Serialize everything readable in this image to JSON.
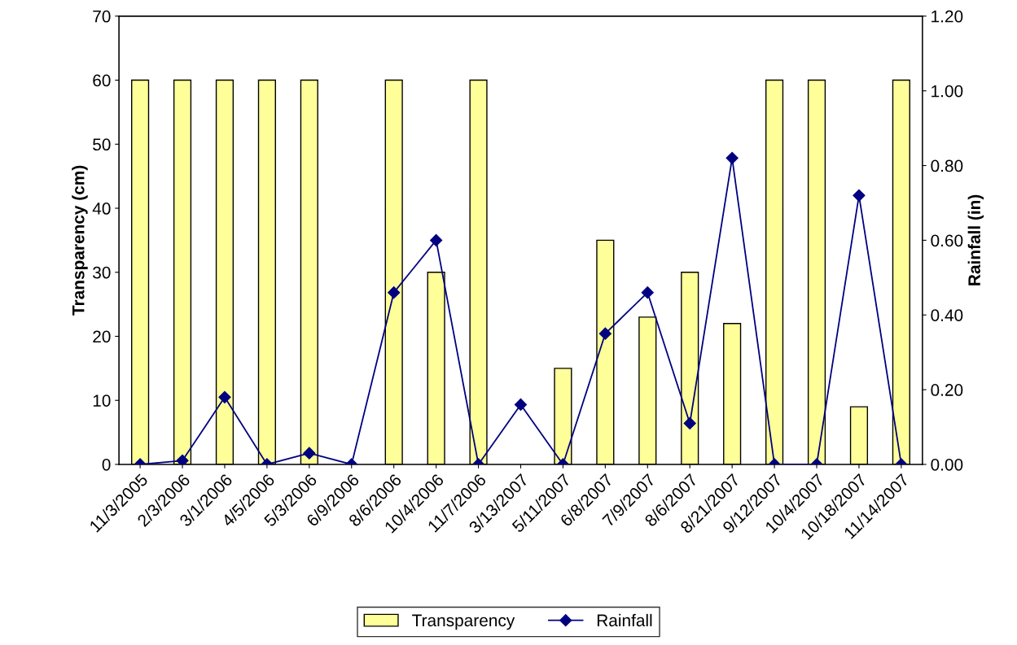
{
  "chart_data": {
    "type": "bar",
    "categories": [
      "11/3/2005",
      "2/3/2006",
      "3/1/2006",
      "4/5/2006",
      "5/3/2006",
      "6/9/2006",
      "8/6/2006",
      "10/4/2006",
      "11/7/2006",
      "3/13/2007",
      "5/11/2007",
      "6/8/2007",
      "7/9/2007",
      "8/6/2007",
      "8/21/2007",
      "9/12/2007",
      "10/4/2007",
      "10/18/2007",
      "11/14/2007"
    ],
    "series": [
      {
        "name": "Transparency",
        "color": "#ffff99",
        "values": [
          60,
          60,
          60,
          60,
          60,
          null,
          60,
          30,
          60,
          null,
          15,
          35,
          23,
          30,
          22,
          60,
          60,
          9,
          60
        ]
      },
      {
        "name": "Rainfall",
        "type": "line",
        "axis": "y2",
        "color": "#000080",
        "marker": "diamond",
        "values": [
          0,
          0.01,
          0.18,
          0,
          0.03,
          0,
          0.46,
          0.6,
          0,
          0.16,
          0,
          0.35,
          0.46,
          0.11,
          0.82,
          0,
          0,
          0.72,
          0
        ]
      }
    ],
    "ylabel": "Transparency (cm)",
    "y2label": "Rainfall (in)",
    "ylim": [
      0,
      70
    ],
    "yticks": [
      0,
      10,
      20,
      30,
      40,
      50,
      60,
      70
    ],
    "y2lim": [
      0,
      1.2
    ],
    "y2ticks": [
      {
        "value": 0,
        "label": "0.00"
      },
      {
        "value": 0.2,
        "label": "0.20"
      },
      {
        "value": 0.4,
        "label": "0.40"
      },
      {
        "value": 0.6,
        "label": "0.60"
      },
      {
        "value": 0.8,
        "label": "0.80"
      },
      {
        "value": 1.0,
        "label": "1.00"
      },
      {
        "value": 1.2,
        "label": "1.20"
      }
    ],
    "legend": "bottom",
    "grid": false
  }
}
